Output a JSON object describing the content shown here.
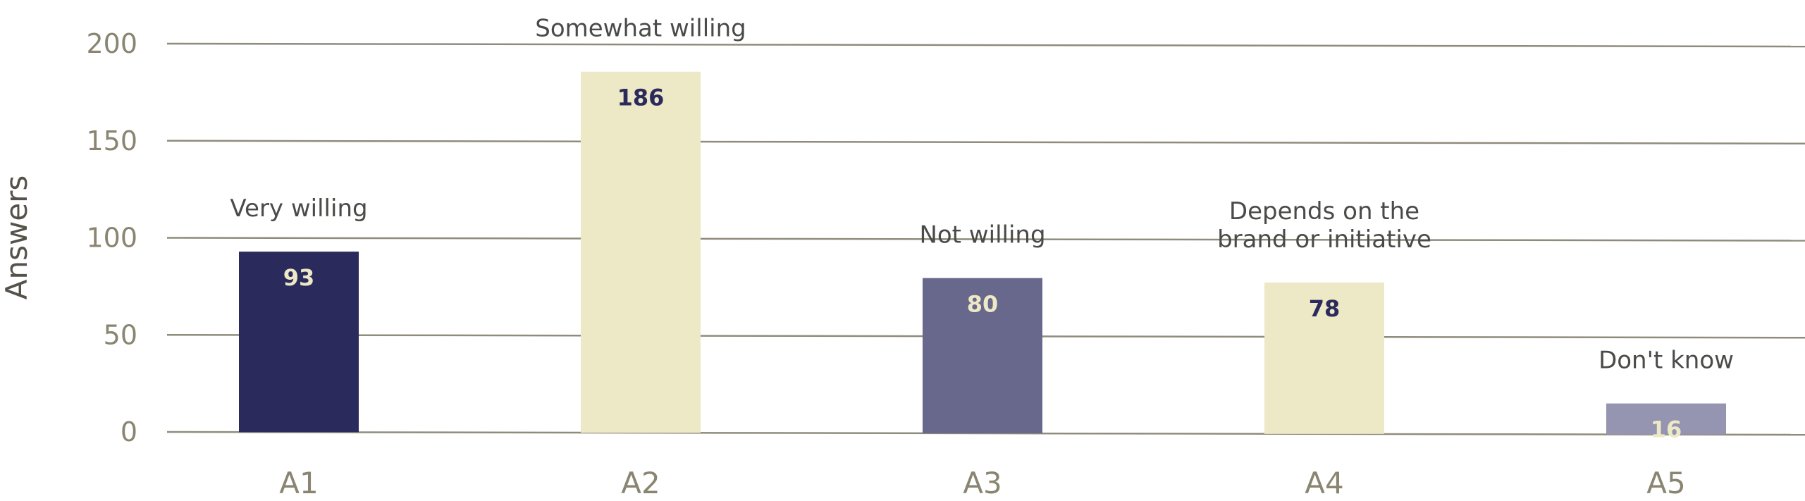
{
  "chart_data": {
    "type": "bar",
    "ylabel": "Answers",
    "ylim": [
      0,
      200
    ],
    "yticks": [
      0,
      50,
      100,
      150,
      200
    ],
    "grid": true,
    "categories": [
      "A1",
      "A2",
      "A3",
      "A4",
      "A5"
    ],
    "values": [
      93,
      186,
      80,
      78,
      16
    ],
    "annotations": [
      [
        "Very willing"
      ],
      [
        "Somewhat willing"
      ],
      [
        "Not willing"
      ],
      [
        "Depends on the",
        "brand or initiative"
      ],
      [
        "Don't know"
      ]
    ],
    "bar_colors": [
      "#2b2a5c",
      "#ede8c6",
      "#68678c",
      "#ede8c6",
      "#9595b1"
    ],
    "value_label_colors": [
      "#ede8c6",
      "#2b2a5c",
      "#ede8c6",
      "#2b2a5c",
      "#ede8c6"
    ]
  }
}
